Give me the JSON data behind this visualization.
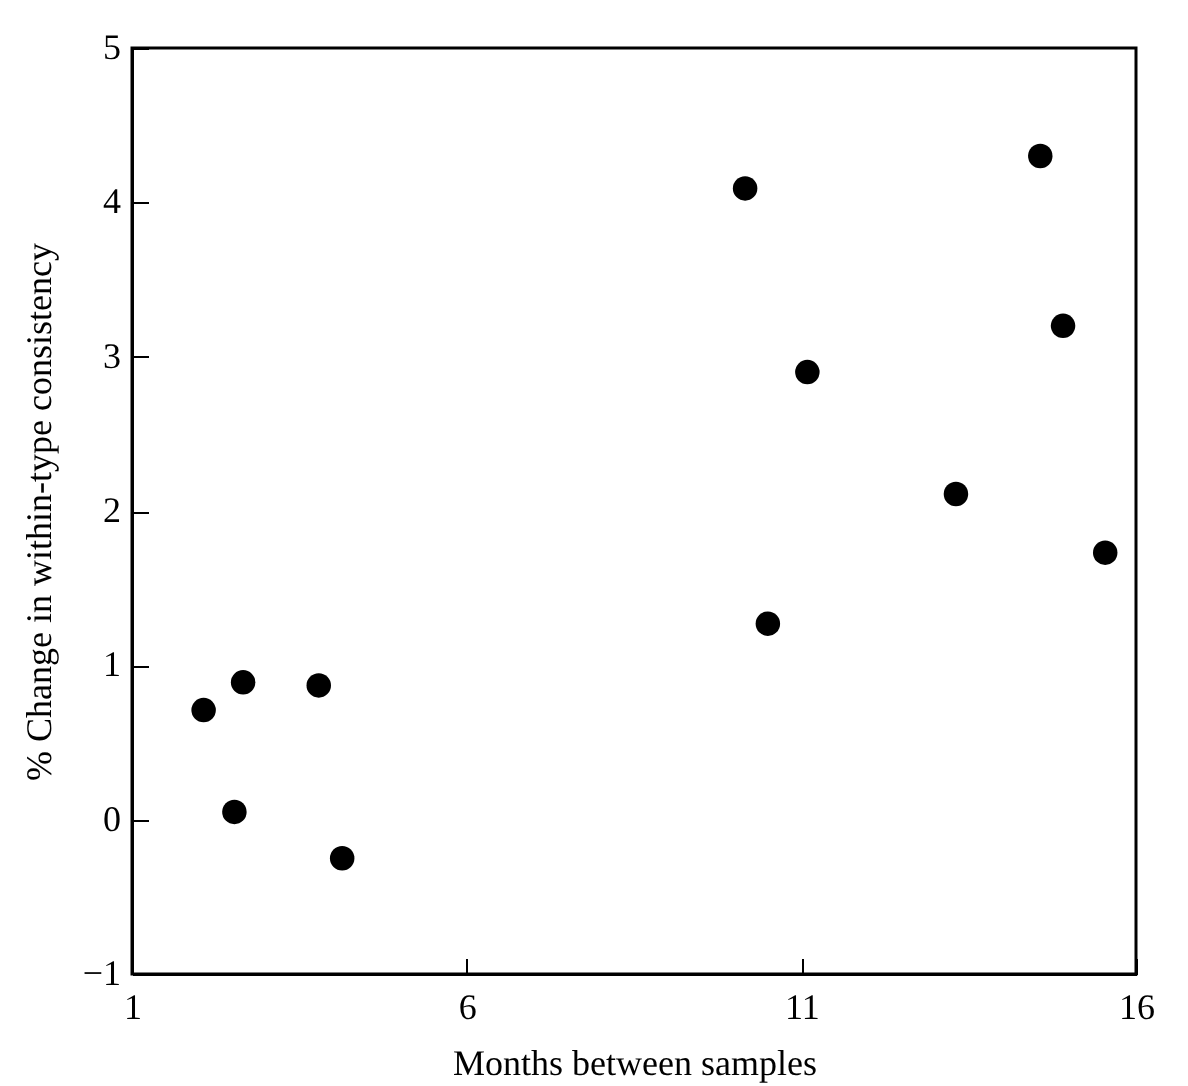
{
  "chart_data": {
    "type": "scatter",
    "xlabel": "Months between samples",
    "ylabel": "% Change in within-type consistency",
    "x": [
      2.07,
      2.66,
      3.79,
      2.53,
      4.14,
      10.16,
      14.57,
      14.91,
      11.09,
      13.31,
      15.54,
      10.5
    ],
    "series": [
      {
        "color": "#000000",
        "values": [
          0.71,
          0.89,
          0.87,
          0.05,
          -0.25,
          4.09,
          4.3,
          3.2,
          2.9,
          2.11,
          1.73,
          1.27
        ]
      }
    ],
    "xlim": [
      1,
      16
    ],
    "xticks": [
      1,
      6,
      11,
      16
    ],
    "ylim": [
      -1,
      5
    ],
    "yticks": [
      -1,
      0,
      1,
      2,
      3,
      4,
      5
    ],
    "grid": false,
    "legend": false,
    "marker": "circle"
  }
}
